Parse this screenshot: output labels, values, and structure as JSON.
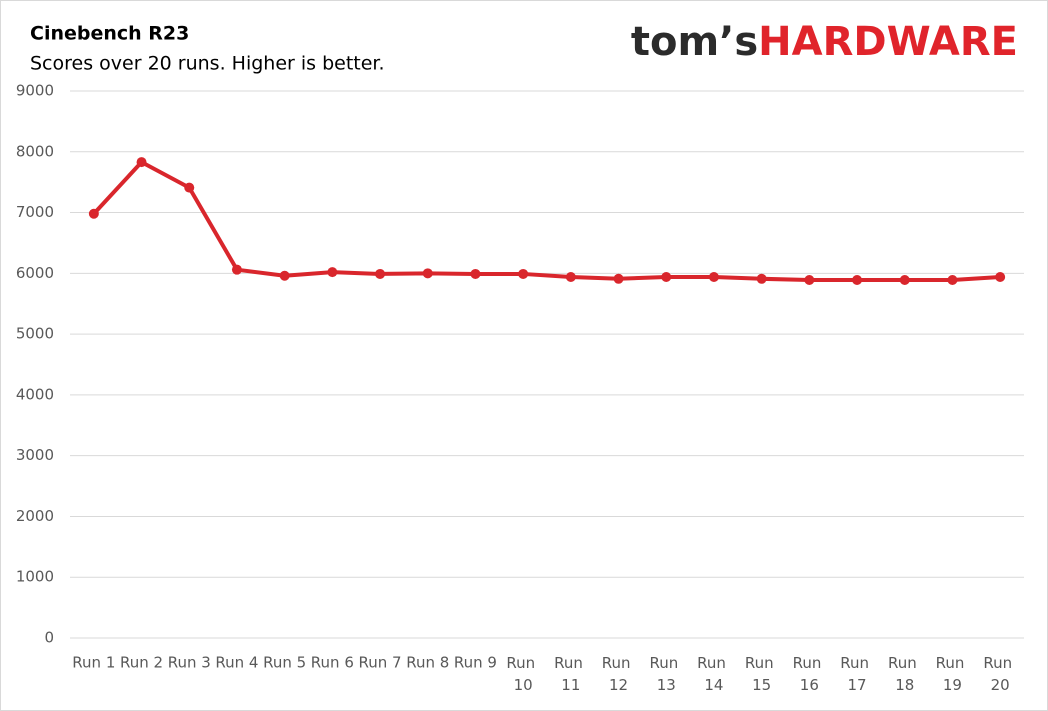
{
  "chart_data": {
    "type": "line",
    "title": "Cinebench R23",
    "subtitle": "Scores over 20 runs. Higher is better.",
    "logo": {
      "first": "tom’s",
      "second": "HARDWARE"
    },
    "categories": [
      "Run 1",
      "Run 2",
      "Run 3",
      "Run 4",
      "Run 5",
      "Run 6",
      "Run 7",
      "Run 8",
      "Run 9",
      "Run 10",
      "Run 11",
      "Run 12",
      "Run 13",
      "Run 14",
      "Run 15",
      "Run 16",
      "Run 17",
      "Run 18",
      "Run 19",
      "Run 20"
    ],
    "series": [
      {
        "color": "#d9262c",
        "values": [
          6980,
          7830,
          7410,
          6060,
          5960,
          6020,
          5990,
          6000,
          5990,
          5990,
          5940,
          5910,
          5940,
          5940,
          5910,
          5890,
          5890,
          5890,
          5890,
          5940
        ]
      }
    ],
    "ylim": [
      0,
      9000
    ],
    "yticks": [
      0,
      1000,
      2000,
      3000,
      4000,
      5000,
      6000,
      7000,
      8000,
      9000
    ],
    "grid": true
  }
}
